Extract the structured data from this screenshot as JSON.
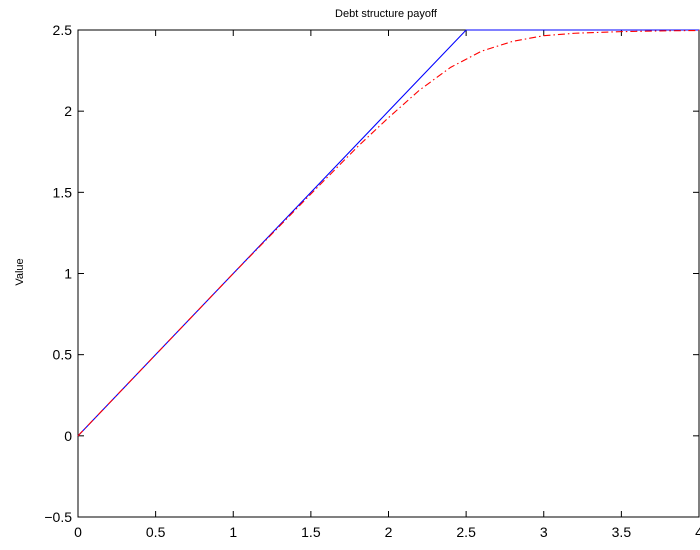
{
  "chart_data": {
    "type": "line",
    "title": "Debt structure payoff",
    "xlabel": "",
    "ylabel": "Value",
    "xlim": [
      0,
      4
    ],
    "ylim": [
      -0.5,
      2.5
    ],
    "xticks": [
      "0",
      "0.5",
      "1",
      "1.5",
      "2",
      "2.5",
      "3",
      "3.5",
      "4"
    ],
    "yticks": [
      "−0.5",
      "0",
      "0.5",
      "1",
      "1.5",
      "2",
      "2.5"
    ],
    "grid": false,
    "series": [
      {
        "color": "#0000ff",
        "style": "solid",
        "x": [
          0,
          0.5,
          1,
          1.5,
          2,
          2.5,
          3,
          3.5,
          4
        ],
        "y": [
          0,
          0.5,
          1,
          1.5,
          2,
          2.5,
          2.5,
          2.5,
          2.5
        ]
      },
      {
        "color": "#ff0000",
        "style": "dash-dot",
        "x": [
          0,
          0.5,
          1,
          1.5,
          1.8,
          2,
          2.2,
          2.4,
          2.6,
          2.8,
          3,
          3.2,
          3.5,
          3.8,
          4
        ],
        "y": [
          0,
          0.5,
          1,
          1.49,
          1.78,
          1.96,
          2.13,
          2.27,
          2.37,
          2.43,
          2.465,
          2.48,
          2.49,
          2.495,
          2.497
        ]
      }
    ]
  }
}
